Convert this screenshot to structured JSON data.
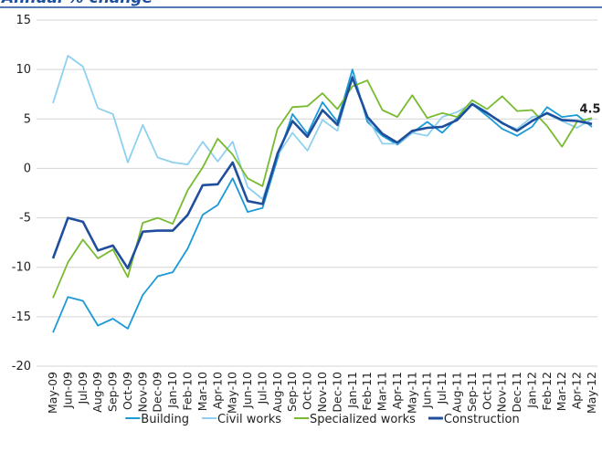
{
  "chart_data": {
    "type": "line",
    "title": "Annual % change",
    "categories": [
      "May-09",
      "Jun-09",
      "Jul-09",
      "Aug-09",
      "Sep-09",
      "Oct-09",
      "Nov-09",
      "Dec-09",
      "Jan-10",
      "Feb-10",
      "Mar-10",
      "Apr-10",
      "May-10",
      "Jun-10",
      "Jul-10",
      "Aug-10",
      "Sep-10",
      "Oct-10",
      "Nov-10",
      "Dec-10",
      "Jan-11",
      "Feb-11",
      "Mar-11",
      "Apr-11",
      "May-11",
      "Jun-11",
      "Jul-11",
      "Aug-11",
      "Sep-11",
      "Oct-11",
      "Nov-11",
      "Dec-11",
      "Jan-12",
      "Feb-12",
      "Mar-12",
      "Apr-12",
      "May-12"
    ],
    "series": [
      {
        "name": "Building",
        "color": "#1a9ad6",
        "values": [
          -16.6,
          -13,
          -13.4,
          -15.9,
          -15.2,
          -16.2,
          -12.8,
          -10.9,
          -10.5,
          -8.1,
          -4.7,
          -3.7,
          -1,
          -4.4,
          -4,
          1,
          5.5,
          3.5,
          6.7,
          4.7,
          10,
          4.7,
          3.3,
          2.4,
          3.6,
          4.7,
          3.6,
          5.1,
          6.5,
          5.3,
          4,
          3.3,
          4.2,
          6.2,
          5.2,
          5.4,
          4.2
        ]
      },
      {
        "name": "Civil works",
        "color": "#8fd0ef",
        "values": [
          6.6,
          11.4,
          10.3,
          6.1,
          5.5,
          0.6,
          4.4,
          1.1,
          0.6,
          0.4,
          2.7,
          0.7,
          2.7,
          -1.9,
          -3.1,
          1.3,
          3.6,
          1.8,
          4.9,
          3.8,
          9.5,
          5.1,
          2.5,
          2.5,
          3.6,
          3.3,
          5.2,
          5.7,
          6.6,
          5.7,
          4.5,
          4,
          5.2,
          5.5,
          4.8,
          4.1,
          5
        ]
      },
      {
        "name": "Specialized works",
        "color": "#77bb2f",
        "values": [
          -13.1,
          -9.5,
          -7.2,
          -9.1,
          -8.2,
          -11,
          -5.5,
          -5,
          -5.6,
          -2.2,
          0.1,
          3,
          1.4,
          -1,
          -1.8,
          4,
          6.2,
          6.3,
          7.6,
          6,
          8.3,
          8.9,
          5.9,
          5.2,
          7.4,
          5.1,
          5.6,
          5.2,
          6.9,
          6,
          7.3,
          5.8,
          5.9,
          4.3,
          2.2,
          4.7,
          5.1
        ]
      },
      {
        "name": "Construction",
        "color": "#1f4f9c",
        "values": [
          -9.1,
          -5,
          -5.4,
          -8.3,
          -7.8,
          -10.1,
          -6.4,
          -6.3,
          -6.3,
          -4.7,
          -1.7,
          -1.6,
          0.6,
          -3.3,
          -3.6,
          1.5,
          4.8,
          3.2,
          5.9,
          4.4,
          9.2,
          5.2,
          3.5,
          2.6,
          3.8,
          4.1,
          4.2,
          4.9,
          6.5,
          5.6,
          4.6,
          3.8,
          4.8,
          5.6,
          4.9,
          4.8,
          4.5
        ]
      }
    ],
    "annotation": {
      "text": "4.5",
      "x": "May-12",
      "y": 4.5
    },
    "ylim": [
      -20,
      15
    ],
    "yticks": [
      -20,
      -15,
      -10,
      -5,
      0,
      5,
      10,
      15
    ],
    "grid": true,
    "legend": "bottom"
  }
}
